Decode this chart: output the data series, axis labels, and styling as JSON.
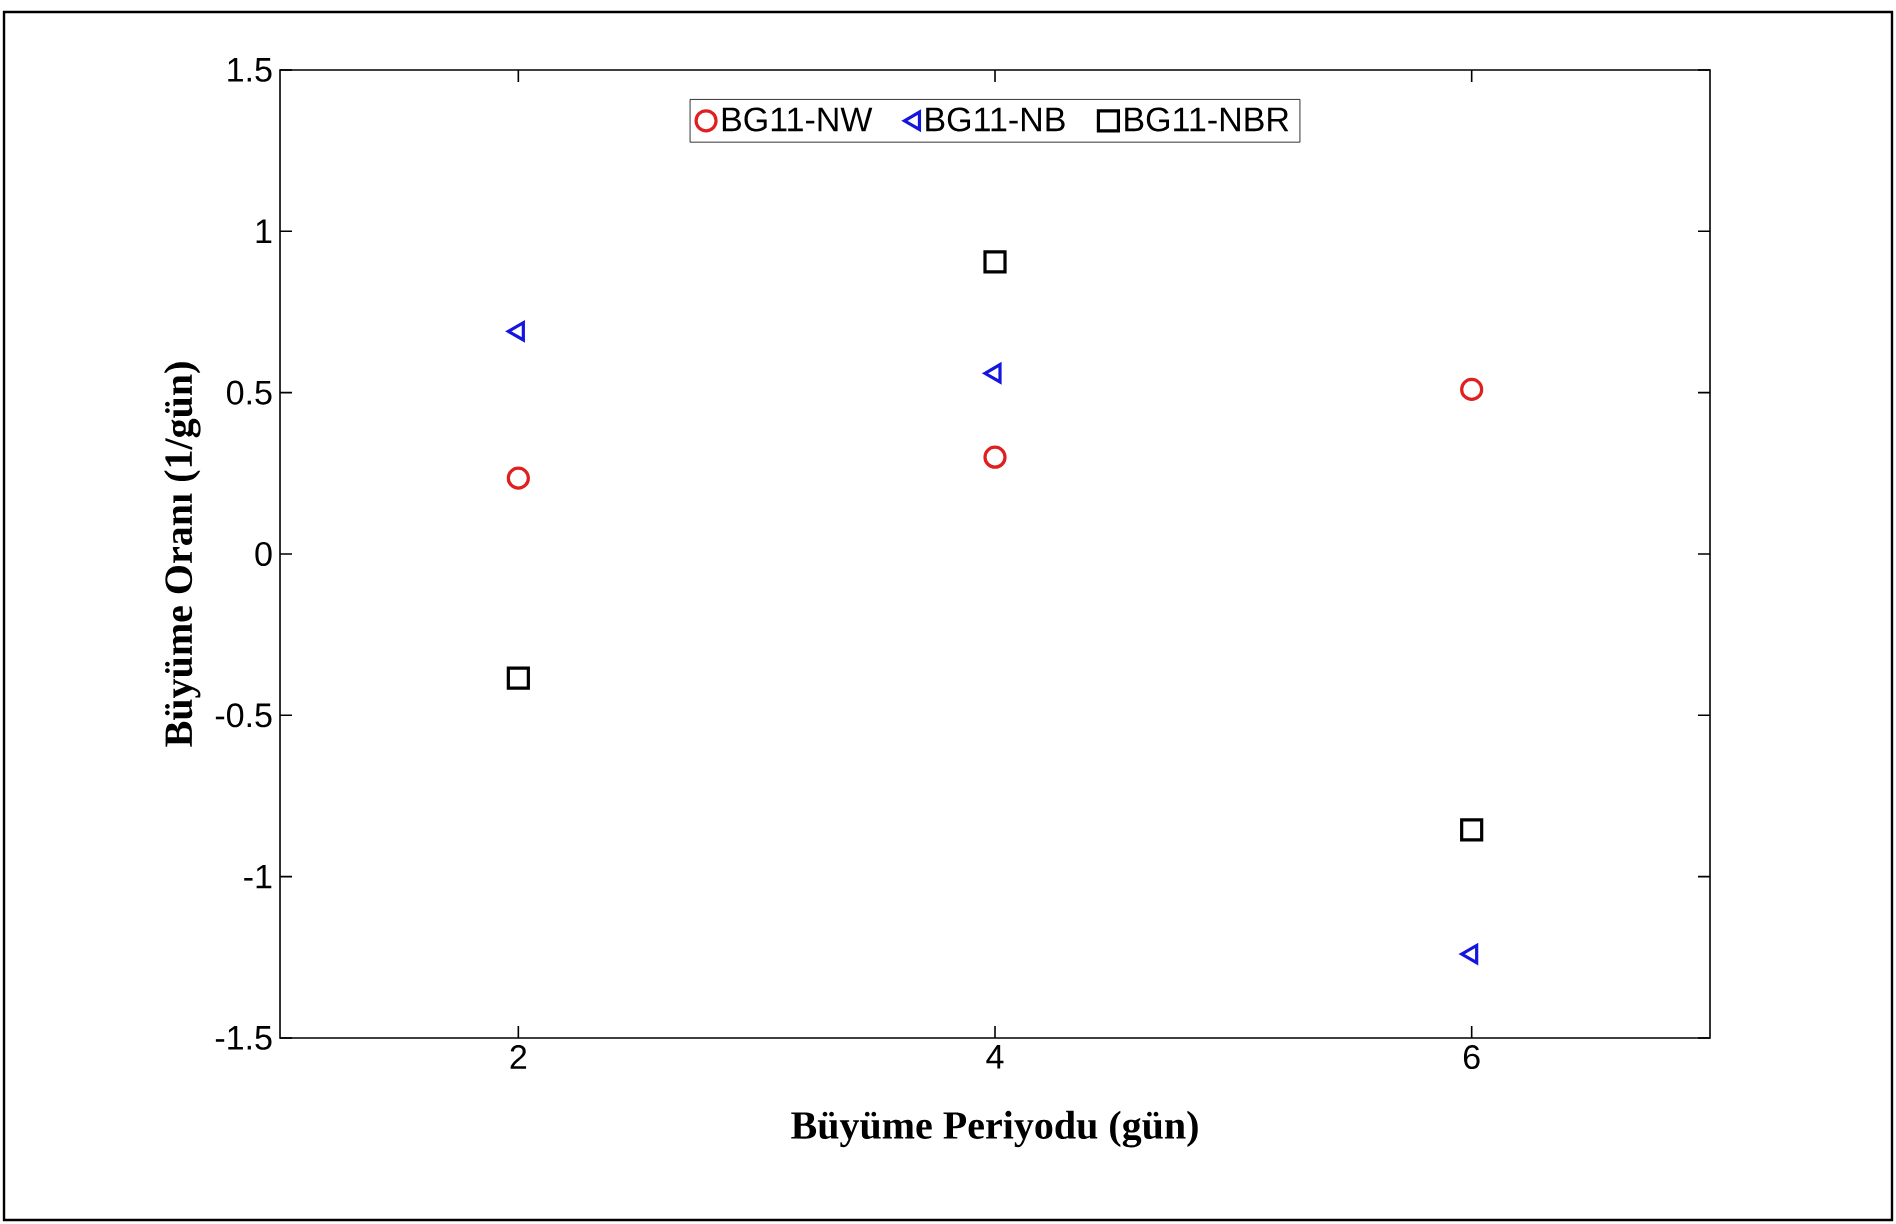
{
  "chart_data": {
    "type": "scatter",
    "xlabel": "Büyüme Periyodu (gün)",
    "ylabel": "Büyüme Oranı (1/gün)",
    "x": [
      2,
      4,
      6
    ],
    "series": [
      {
        "name": "BG11-NW",
        "color": "#e02020",
        "marker": "circle",
        "values": [
          0.235,
          0.3,
          0.51
        ]
      },
      {
        "name": "BG11-NB",
        "color": "#1515e0",
        "marker": "triangle",
        "values": [
          0.69,
          0.56,
          -1.24
        ]
      },
      {
        "name": "BG11-NBR",
        "color": "#000000",
        "marker": "square",
        "values": [
          -0.385,
          0.905,
          -0.855
        ]
      }
    ],
    "xlim": [
      1,
      7
    ],
    "ylim": [
      -1.5,
      1.5
    ],
    "xticks": [
      2,
      4,
      6
    ],
    "yticks": [
      -1.5,
      -1,
      -0.5,
      0,
      0.5,
      1,
      1.5
    ],
    "grid": false,
    "legend": "top"
  }
}
